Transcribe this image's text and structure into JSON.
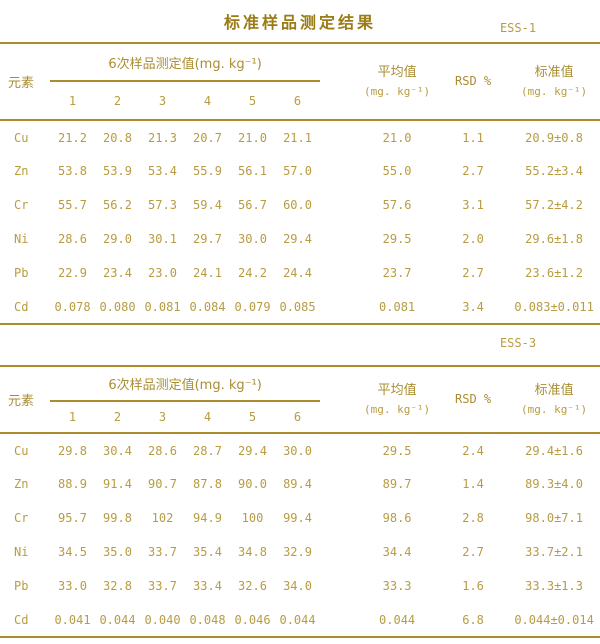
{
  "page": {
    "title": "标准样品测定结果"
  },
  "colors": {
    "background": "#ffffff",
    "title": "#9a7b15",
    "header": "#aa8d33",
    "text": "#b89c42",
    "line": "#ab8c2f"
  },
  "tables": [
    {
      "sample_label": "ESS-1",
      "header": {
        "element_label": "元素",
        "measurements_label": "6次样品测定值(mg. kg⁻¹)",
        "sub_cols": [
          "1",
          "2",
          "3",
          "4",
          "5",
          "6"
        ],
        "mean_label": "平均值",
        "mean_unit": "(mg. kg⁻¹)",
        "rsd_label": "RSD %",
        "std_label": "标准值",
        "std_unit": "(mg. kg⁻¹)"
      },
      "rows": [
        {
          "element": "Cu",
          "values": [
            "21.2",
            "20.8",
            "21.3",
            "20.7",
            "21.0",
            "21.1"
          ],
          "mean": "21.0",
          "rsd": "1.1",
          "standard": "20.9±0.8"
        },
        {
          "element": "Zn",
          "values": [
            "53.8",
            "53.9",
            "53.4",
            "55.9",
            "56.1",
            "57.0"
          ],
          "mean": "55.0",
          "rsd": "2.7",
          "standard": "55.2±3.4"
        },
        {
          "element": "Cr",
          "values": [
            "55.7",
            "56.2",
            "57.3",
            "59.4",
            "56.7",
            "60.0"
          ],
          "mean": "57.6",
          "rsd": "3.1",
          "standard": "57.2±4.2"
        },
        {
          "element": "Ni",
          "values": [
            "28.6",
            "29.0",
            "30.1",
            "29.7",
            "30.0",
            "29.4"
          ],
          "mean": "29.5",
          "rsd": "2.0",
          "standard": "29.6±1.8"
        },
        {
          "element": "Pb",
          "values": [
            "22.9",
            "23.4",
            "23.0",
            "24.1",
            "24.2",
            "24.4"
          ],
          "mean": "23.7",
          "rsd": "2.7",
          "standard": "23.6±1.2"
        },
        {
          "element": "Cd",
          "values": [
            "0.078",
            "0.080",
            "0.081",
            "0.084",
            "0.079",
            "0.085"
          ],
          "mean": "0.081",
          "rsd": "3.4",
          "standard": "0.083±0.011"
        }
      ]
    },
    {
      "sample_label": "ESS-3",
      "header": {
        "element_label": "元素",
        "measurements_label": "6次样品测定值(mg. kg⁻¹)",
        "sub_cols": [
          "1",
          "2",
          "3",
          "4",
          "5",
          "6"
        ],
        "mean_label": "平均值",
        "mean_unit": "(mg. kg⁻¹)",
        "rsd_label": "RSD %",
        "std_label": "标准值",
        "std_unit": "(mg. kg⁻¹)"
      },
      "rows": [
        {
          "element": "Cu",
          "values": [
            "29.8",
            "30.4",
            "28.6",
            "28.7",
            "29.4",
            "30.0"
          ],
          "mean": "29.5",
          "rsd": "2.4",
          "standard": "29.4±1.6"
        },
        {
          "element": "Zn",
          "values": [
            "88.9",
            "91.4",
            "90.7",
            "87.8",
            "90.0",
            "89.4"
          ],
          "mean": "89.7",
          "rsd": "1.4",
          "standard": "89.3±4.0"
        },
        {
          "element": "Cr",
          "values": [
            "95.7",
            "99.8",
            "102",
            "94.9",
            "100",
            "99.4"
          ],
          "mean": "98.6",
          "rsd": "2.8",
          "standard": "98.0±7.1"
        },
        {
          "element": "Ni",
          "values": [
            "34.5",
            "35.0",
            "33.7",
            "35.4",
            "34.8",
            "32.9"
          ],
          "mean": "34.4",
          "rsd": "2.7",
          "standard": "33.7±2.1"
        },
        {
          "element": "Pb",
          "values": [
            "33.0",
            "32.8",
            "33.7",
            "33.4",
            "32.6",
            "34.0"
          ],
          "mean": "33.3",
          "rsd": "1.6",
          "standard": "33.3±1.3"
        },
        {
          "element": "Cd",
          "values": [
            "0.041",
            "0.044",
            "0.040",
            "0.048",
            "0.046",
            "0.044"
          ],
          "mean": "0.044",
          "rsd": "6.8",
          "standard": "0.044±0.014"
        }
      ]
    }
  ]
}
